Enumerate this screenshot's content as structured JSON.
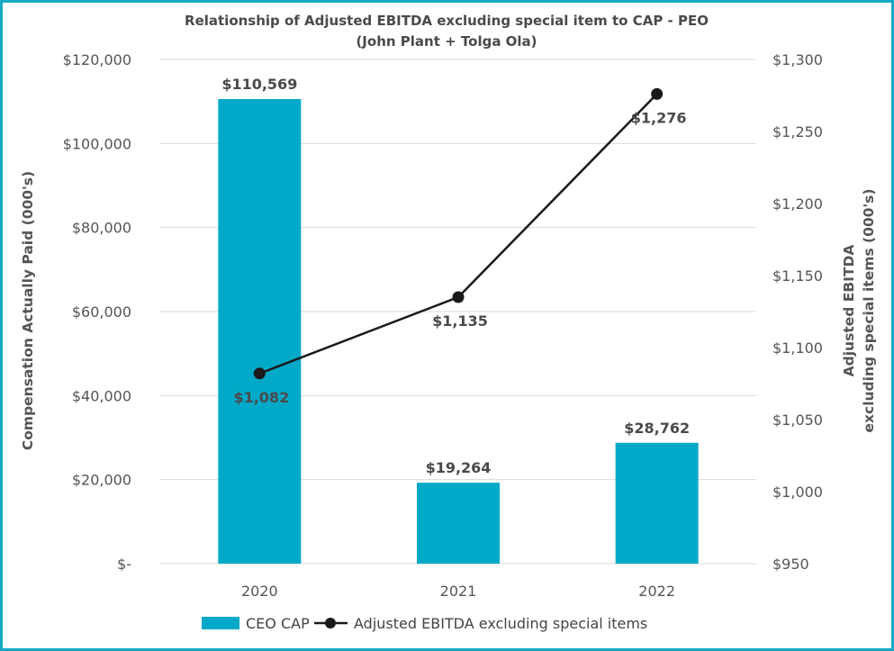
{
  "chart_data": {
    "type": "bar+line",
    "title_line1": "Relationship of Adjusted EBITDA excluding special item to CAP - PEO",
    "title_line2": "(John Plant + Tolga Ola)",
    "categories": [
      "2020",
      "2021",
      "2022"
    ],
    "series": [
      {
        "name": "CEO CAP",
        "type": "bar",
        "axis": "left",
        "color": "#00a9c8",
        "values": [
          110569,
          19264,
          28762
        ],
        "labels": [
          "$110,569",
          "$19,264",
          "$28,762"
        ]
      },
      {
        "name": "Adjusted EBITDA excluding special items",
        "type": "line",
        "axis": "right",
        "color": "#1a1a1a",
        "values": [
          1082,
          1135,
          1276
        ],
        "labels": [
          "$1,082",
          "$1,135",
          "$1,276"
        ]
      }
    ],
    "y_left": {
      "label": "Compensation Actually Paid (000's)",
      "min": 0,
      "max": 120000,
      "ticks": [
        "$-",
        "$20,000",
        "$40,000",
        "$60,000",
        "$80,000",
        "$100,000",
        "$120,000"
      ]
    },
    "y_right": {
      "label_line1": "Adjusted EBITDA",
      "label_line2": "excluding special items (000's)",
      "min": 950,
      "max": 1300,
      "ticks": [
        "$950",
        "$1,000",
        "$1,050",
        "$1,100",
        "$1,150",
        "$1,200",
        "$1,250",
        "$1,300"
      ]
    },
    "legend_position": "bottom",
    "gridlines": true
  }
}
